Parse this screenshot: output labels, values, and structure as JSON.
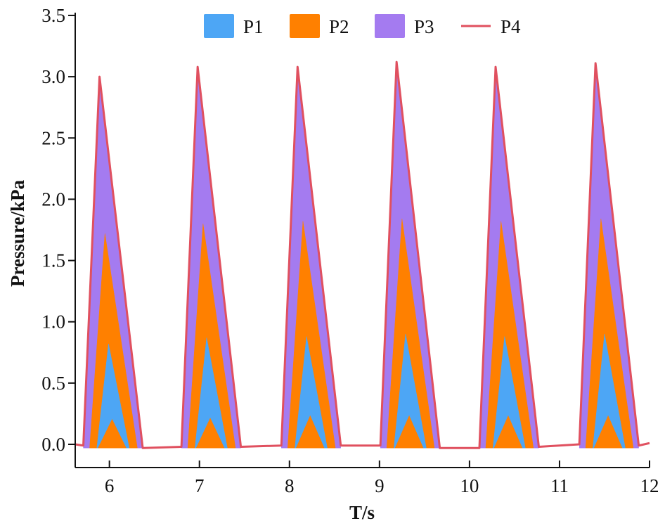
{
  "chart_data": {
    "type": "area",
    "title": "",
    "xlabel": "T/s",
    "ylabel": "Pressure/kPa",
    "xlim": [
      5.62,
      12.0
    ],
    "ylim": [
      -0.19,
      3.6
    ],
    "xticks": [
      "6",
      "7",
      "8",
      "9",
      "10",
      "11",
      "12"
    ],
    "yticks": [
      "0.0",
      "0.5",
      "1.0",
      "1.5",
      "2.0",
      "2.5",
      "3.0",
      "3.5"
    ],
    "grid": false,
    "legend_position": "top-center",
    "series": [
      {
        "name": "P1",
        "kind": "area",
        "color": "#4DA6F5",
        "x": [
          5.86,
          5.99,
          6.22,
          6.95,
          7.08,
          7.31,
          8.06,
          8.19,
          8.42,
          9.16,
          9.29,
          9.52,
          10.26,
          10.39,
          10.62,
          11.37,
          11.5,
          11.73
        ],
        "y": [
          -0.03,
          0.82,
          -0.03,
          -0.03,
          0.87,
          -0.03,
          -0.03,
          0.88,
          -0.03,
          -0.03,
          0.9,
          -0.03,
          -0.03,
          0.88,
          -0.03,
          -0.03,
          0.9,
          -0.03
        ],
        "x_lower": [
          5.87,
          6.03,
          6.19,
          6.96,
          7.12,
          7.28,
          8.07,
          8.23,
          8.39,
          9.17,
          9.33,
          9.49,
          10.27,
          10.43,
          10.59,
          11.38,
          11.54,
          11.7
        ],
        "y_lower": [
          -0.03,
          0.21,
          -0.03,
          -0.03,
          0.22,
          -0.03,
          -0.03,
          0.24,
          -0.03,
          -0.03,
          0.24,
          -0.03,
          -0.03,
          0.24,
          -0.03,
          -0.03,
          0.24,
          -0.03
        ]
      },
      {
        "name": "P2",
        "kind": "area",
        "color": "#FF8000",
        "x": [
          5.78,
          5.95,
          6.31,
          6.87,
          7.04,
          7.4,
          7.98,
          8.15,
          8.51,
          9.08,
          9.25,
          9.61,
          10.18,
          10.35,
          10.71,
          11.29,
          11.46,
          11.82
        ],
        "y": [
          -0.03,
          1.72,
          -0.03,
          -0.03,
          1.8,
          -0.03,
          -0.03,
          1.82,
          -0.03,
          -0.03,
          1.84,
          -0.03,
          -0.03,
          1.82,
          -0.03,
          -0.03,
          1.84,
          -0.03
        ]
      },
      {
        "name": "P3",
        "kind": "area",
        "color": "#A47BF0",
        "x": [
          5.71,
          5.89,
          6.37,
          6.8,
          6.98,
          7.46,
          7.91,
          8.09,
          8.57,
          9.01,
          9.19,
          9.67,
          10.11,
          10.29,
          10.77,
          11.22,
          11.4,
          11.88
        ],
        "y": [
          -0.03,
          2.96,
          -0.03,
          -0.03,
          3.04,
          -0.03,
          -0.03,
          3.04,
          -0.03,
          -0.03,
          3.08,
          -0.03,
          -0.03,
          3.04,
          -0.03,
          -0.03,
          3.07,
          -0.03
        ]
      },
      {
        "name": "P4",
        "kind": "line",
        "color": "#E0505F",
        "x": [
          5.62,
          5.71,
          5.89,
          6.37,
          6.8,
          6.98,
          7.46,
          7.91,
          8.09,
          8.57,
          9.01,
          9.19,
          9.67,
          10.11,
          10.29,
          10.77,
          11.22,
          11.4,
          11.88,
          12.0
        ],
        "y": [
          0.0,
          -0.01,
          3.0,
          -0.03,
          -0.02,
          3.08,
          -0.02,
          -0.01,
          3.08,
          -0.01,
          -0.01,
          3.12,
          -0.03,
          -0.03,
          3.08,
          -0.02,
          0.0,
          3.11,
          -0.01,
          0.01
        ]
      }
    ]
  }
}
